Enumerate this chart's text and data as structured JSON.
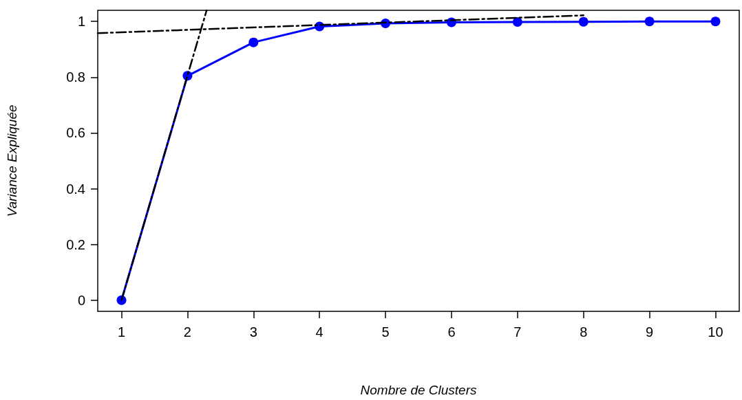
{
  "chart_data": {
    "type": "line",
    "xlabel": "Nombre de Clusters",
    "ylabel": "Variance Expliquée",
    "xlim": [
      0.64,
      10.36
    ],
    "xticks": [
      1,
      2,
      3,
      4,
      5,
      6,
      7,
      8,
      9,
      10
    ],
    "ylim": [
      -0.04,
      1.04
    ],
    "yticks": [
      0,
      0.2,
      0.4,
      0.6,
      0.8,
      1
    ],
    "grid": false,
    "series": [
      {
        "color": "#0000ff",
        "marker": "circle",
        "line_style": "solid",
        "x": [
          1,
          2,
          3,
          4,
          5,
          6,
          7,
          8,
          9,
          10
        ],
        "values": [
          0,
          0.805,
          0.925,
          0.982,
          0.993,
          0.997,
          0.998,
          0.999,
          1,
          1
        ]
      },
      {
        "color": "#000000",
        "marker": "none",
        "line_style": "dashed",
        "x": [
          1,
          2.29
        ],
        "values": [
          0,
          1.04
        ]
      },
      {
        "color": "#000000",
        "marker": "none",
        "line_style": "dashed",
        "x": [
          0.64,
          8
        ],
        "values": [
          0.958,
          1.022
        ]
      }
    ]
  }
}
